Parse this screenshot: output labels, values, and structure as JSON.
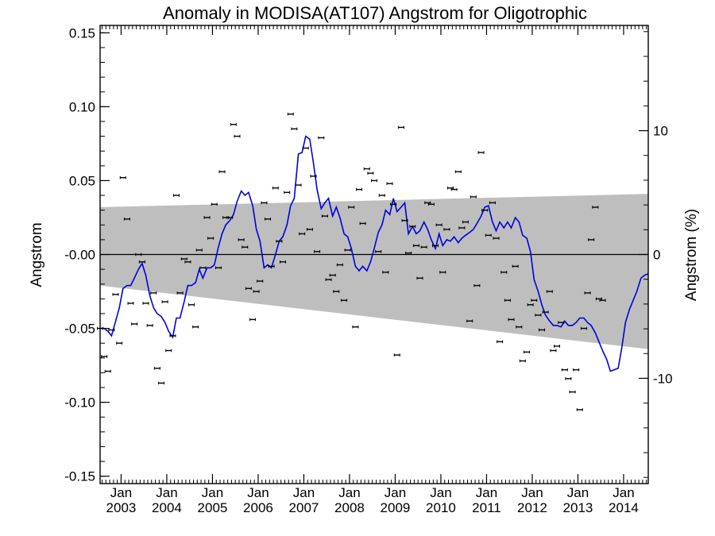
{
  "chart_data": {
    "type": "scatter",
    "title": "Anomaly in MODISA(AT107) Angstrom for Oligotrophic",
    "ylabel": "Angstrom",
    "ylabel_right": "Angstrom (%)",
    "xlabel": "",
    "ylim": [
      -0.155,
      0.155
    ],
    "ylim_right": [
      -18.5,
      18.5
    ],
    "xlim": [
      2002.54,
      2014.54
    ],
    "y_ticks": [
      {
        "value": 0.15,
        "label": "0.15"
      },
      {
        "value": 0.1,
        "label": "0.10"
      },
      {
        "value": 0.05,
        "label": "0.05"
      },
      {
        "value": 0.0,
        "label": "-0.00"
      },
      {
        "value": -0.05,
        "label": "-0.05"
      },
      {
        "value": -0.1,
        "label": "-0.10"
      },
      {
        "value": -0.15,
        "label": "-0.15"
      }
    ],
    "y_ticks_right": [
      {
        "value": 10,
        "label": "10"
      },
      {
        "value": 0,
        "label": "0"
      },
      {
        "value": -10,
        "label": "-10"
      }
    ],
    "x_ticks": [
      {
        "value": 2003.0,
        "month": "Jan",
        "year": "2003"
      },
      {
        "value": 2004.0,
        "month": "Jan",
        "year": "2004"
      },
      {
        "value": 2005.0,
        "month": "Jan",
        "year": "2005"
      },
      {
        "value": 2006.0,
        "month": "Jan",
        "year": "2006"
      },
      {
        "value": 2007.0,
        "month": "Jan",
        "year": "2007"
      },
      {
        "value": 2008.0,
        "month": "Jan",
        "year": "2008"
      },
      {
        "value": 2009.0,
        "month": "Jan",
        "year": "2009"
      },
      {
        "value": 2010.0,
        "month": "Jan",
        "year": "2010"
      },
      {
        "value": 2011.0,
        "month": "Jan",
        "year": "2011"
      },
      {
        "value": 2012.0,
        "month": "Jan",
        "year": "2012"
      },
      {
        "value": 2013.0,
        "month": "Jan",
        "year": "2013"
      },
      {
        "value": 2014.0,
        "month": "Jan",
        "year": "2014"
      }
    ],
    "confidence_band": {
      "x": [
        2002.54,
        2014.54
      ],
      "upper": [
        0.032,
        0.041
      ],
      "lower": [
        -0.021,
        -0.064
      ],
      "color": "#bebebe"
    },
    "zero_line": 0.0,
    "smoothed_series": {
      "color": "#0000dd",
      "points": [
        [
          2002.54,
          -0.05
        ],
        [
          2002.63,
          -0.05
        ],
        [
          2002.71,
          -0.052
        ],
        [
          2002.79,
          -0.055
        ],
        [
          2002.88,
          -0.045
        ],
        [
          2002.96,
          -0.036
        ],
        [
          2003.04,
          -0.023
        ],
        [
          2003.13,
          -0.021
        ],
        [
          2003.21,
          -0.021
        ],
        [
          2003.29,
          -0.016
        ],
        [
          2003.38,
          -0.01
        ],
        [
          2003.46,
          -0.006
        ],
        [
          2003.54,
          -0.014
        ],
        [
          2003.63,
          -0.028
        ],
        [
          2003.71,
          -0.036
        ],
        [
          2003.79,
          -0.04
        ],
        [
          2003.88,
          -0.042
        ],
        [
          2003.96,
          -0.046
        ],
        [
          2004.04,
          -0.052
        ],
        [
          2004.13,
          -0.056
        ],
        [
          2004.21,
          -0.043
        ],
        [
          2004.29,
          -0.043
        ],
        [
          2004.38,
          -0.032
        ],
        [
          2004.46,
          -0.021
        ],
        [
          2004.54,
          -0.021
        ],
        [
          2004.63,
          -0.019
        ],
        [
          2004.71,
          -0.01
        ],
        [
          2004.79,
          -0.016
        ],
        [
          2004.88,
          -0.009
        ],
        [
          2004.96,
          -0.009
        ],
        [
          2005.04,
          -0.007
        ],
        [
          2005.13,
          0.005
        ],
        [
          2005.21,
          0.014
        ],
        [
          2005.29,
          0.02
        ],
        [
          2005.38,
          0.023
        ],
        [
          2005.46,
          0.027
        ],
        [
          2005.54,
          0.036
        ],
        [
          2005.63,
          0.043
        ],
        [
          2005.71,
          0.04
        ],
        [
          2005.79,
          0.042
        ],
        [
          2005.88,
          0.033
        ],
        [
          2005.96,
          0.017
        ],
        [
          2006.04,
          0.009
        ],
        [
          2006.13,
          -0.009
        ],
        [
          2006.21,
          -0.007
        ],
        [
          2006.29,
          -0.009
        ],
        [
          2006.38,
          0.0
        ],
        [
          2006.46,
          0.009
        ],
        [
          2006.54,
          0.012
        ],
        [
          2006.63,
          0.02
        ],
        [
          2006.71,
          0.033
        ],
        [
          2006.79,
          0.038
        ],
        [
          2006.88,
          0.068
        ],
        [
          2006.96,
          0.069
        ],
        [
          2007.04,
          0.08
        ],
        [
          2007.13,
          0.078
        ],
        [
          2007.21,
          0.062
        ],
        [
          2007.29,
          0.044
        ],
        [
          2007.38,
          0.031
        ],
        [
          2007.46,
          0.035
        ],
        [
          2007.54,
          0.038
        ],
        [
          2007.63,
          0.026
        ],
        [
          2007.71,
          0.032
        ],
        [
          2007.79,
          0.025
        ],
        [
          2007.88,
          0.014
        ],
        [
          2007.96,
          0.012
        ],
        [
          2008.04,
          0.004
        ],
        [
          2008.13,
          -0.008
        ],
        [
          2008.21,
          -0.011
        ],
        [
          2008.29,
          -0.008
        ],
        [
          2008.38,
          -0.011
        ],
        [
          2008.46,
          -0.005
        ],
        [
          2008.54,
          0.004
        ],
        [
          2008.63,
          0.015
        ],
        [
          2008.71,
          0.02
        ],
        [
          2008.79,
          0.03
        ],
        [
          2008.88,
          0.027
        ],
        [
          2008.96,
          0.038
        ],
        [
          2009.04,
          0.029
        ],
        [
          2009.13,
          0.032
        ],
        [
          2009.21,
          0.035
        ],
        [
          2009.29,
          0.014
        ],
        [
          2009.38,
          0.019
        ],
        [
          2009.46,
          0.014
        ],
        [
          2009.54,
          0.016
        ],
        [
          2009.63,
          0.022
        ],
        [
          2009.71,
          0.017
        ],
        [
          2009.79,
          0.01
        ],
        [
          2009.88,
          0.004
        ],
        [
          2009.96,
          0.014
        ],
        [
          2010.04,
          0.006
        ],
        [
          2010.13,
          0.01
        ],
        [
          2010.21,
          0.009
        ],
        [
          2010.29,
          0.012
        ],
        [
          2010.38,
          0.008
        ],
        [
          2010.46,
          0.011
        ],
        [
          2010.54,
          0.013
        ],
        [
          2010.63,
          0.015
        ],
        [
          2010.71,
          0.017
        ],
        [
          2010.79,
          0.021
        ],
        [
          2010.88,
          0.026
        ],
        [
          2010.96,
          0.032
        ],
        [
          2011.04,
          0.033
        ],
        [
          2011.13,
          0.022
        ],
        [
          2011.21,
          0.016
        ],
        [
          2011.29,
          0.022
        ],
        [
          2011.38,
          0.018
        ],
        [
          2011.46,
          0.022
        ],
        [
          2011.54,
          0.018
        ],
        [
          2011.63,
          0.025
        ],
        [
          2011.71,
          0.022
        ],
        [
          2011.79,
          0.013
        ],
        [
          2011.88,
          0.011
        ],
        [
          2011.96,
          0.002
        ],
        [
          2012.04,
          -0.017
        ],
        [
          2012.13,
          -0.025
        ],
        [
          2012.21,
          -0.034
        ],
        [
          2012.29,
          -0.041
        ],
        [
          2012.38,
          -0.045
        ],
        [
          2012.46,
          -0.048
        ],
        [
          2012.54,
          -0.048
        ],
        [
          2012.63,
          -0.049
        ],
        [
          2012.71,
          -0.045
        ],
        [
          2012.79,
          -0.048
        ],
        [
          2012.88,
          -0.048
        ],
        [
          2012.96,
          -0.046
        ],
        [
          2013.04,
          -0.043
        ],
        [
          2013.13,
          -0.043
        ],
        [
          2013.21,
          -0.046
        ],
        [
          2013.29,
          -0.048
        ],
        [
          2013.38,
          -0.053
        ],
        [
          2013.46,
          -0.059
        ],
        [
          2013.54,
          -0.065
        ],
        [
          2013.63,
          -0.071
        ],
        [
          2013.71,
          -0.079
        ],
        [
          2013.79,
          -0.078
        ],
        [
          2013.88,
          -0.077
        ],
        [
          2013.96,
          -0.063
        ],
        [
          2014.04,
          -0.046
        ],
        [
          2014.13,
          -0.037
        ],
        [
          2014.21,
          -0.031
        ],
        [
          2014.29,
          -0.025
        ],
        [
          2014.38,
          -0.016
        ],
        [
          2014.46,
          -0.014
        ],
        [
          2014.54,
          -0.013
        ]
      ]
    },
    "points": [
      [
        2002.54,
        -0.05
      ],
      [
        2002.63,
        -0.069
      ],
      [
        2002.71,
        -0.079
      ],
      [
        2002.79,
        -0.051
      ],
      [
        2002.88,
        -0.027
      ],
      [
        2002.96,
        -0.06
      ],
      [
        2003.04,
        0.052
      ],
      [
        2003.13,
        0.024
      ],
      [
        2003.21,
        -0.033
      ],
      [
        2003.29,
        -0.047
      ],
      [
        2003.38,
        0.0
      ],
      [
        2003.46,
        -0.005
      ],
      [
        2003.54,
        -0.033
      ],
      [
        2003.63,
        -0.048
      ],
      [
        2003.71,
        -0.026
      ],
      [
        2003.79,
        -0.077
      ],
      [
        2003.88,
        -0.087
      ],
      [
        2003.96,
        -0.032
      ],
      [
        2004.04,
        -0.065
      ],
      [
        2004.13,
        -0.055
      ],
      [
        2004.21,
        0.04
      ],
      [
        2004.29,
        -0.026
      ],
      [
        2004.38,
        -0.003
      ],
      [
        2004.46,
        -0.005
      ],
      [
        2004.54,
        -0.034
      ],
      [
        2004.63,
        -0.049
      ],
      [
        2004.71,
        0.003
      ],
      [
        2004.79,
        -0.009
      ],
      [
        2004.88,
        0.025
      ],
      [
        2004.96,
        0.011
      ],
      [
        2005.04,
        0.034
      ],
      [
        2005.13,
        -0.009
      ],
      [
        2005.21,
        0.056
      ],
      [
        2005.29,
        0.025
      ],
      [
        2005.38,
        0.025
      ],
      [
        2005.46,
        0.088
      ],
      [
        2005.54,
        0.08
      ],
      [
        2005.63,
        0.01
      ],
      [
        2005.71,
        0.005
      ],
      [
        2005.79,
        -0.023
      ],
      [
        2005.88,
        -0.044
      ],
      [
        2005.96,
        -0.025
      ],
      [
        2006.04,
        -0.018
      ],
      [
        2006.13,
        0.035
      ],
      [
        2006.21,
        0.024
      ],
      [
        2006.29,
        -0.008
      ],
      [
        2006.38,
        0.045
      ],
      [
        2006.46,
        0.009
      ],
      [
        2006.54,
        -0.005
      ],
      [
        2006.63,
        0.042
      ],
      [
        2006.71,
        0.095
      ],
      [
        2006.79,
        0.085
      ],
      [
        2006.88,
        0.047
      ],
      [
        2006.96,
        0.014
      ],
      [
        2007.04,
        0.072
      ],
      [
        2007.13,
        0.017
      ],
      [
        2007.21,
        0.053
      ],
      [
        2007.29,
        0.002
      ],
      [
        2007.38,
        0.079
      ],
      [
        2007.46,
        0.026
      ],
      [
        2007.54,
        -0.017
      ],
      [
        2007.63,
        -0.014
      ],
      [
        2007.71,
        -0.025
      ],
      [
        2007.79,
        -0.007
      ],
      [
        2007.88,
        -0.031
      ],
      [
        2007.96,
        0.003
      ],
      [
        2008.04,
        0.032
      ],
      [
        2008.13,
        -0.049
      ],
      [
        2008.21,
        0.044
      ],
      [
        2008.29,
        0.021
      ],
      [
        2008.38,
        0.058
      ],
      [
        2008.46,
        0.055
      ],
      [
        2008.54,
        0.05
      ],
      [
        2008.63,
        0.002
      ],
      [
        2008.71,
        0.04
      ],
      [
        2008.79,
        -0.012
      ],
      [
        2008.88,
        0.048
      ],
      [
        2008.96,
        0.034
      ],
      [
        2009.04,
        -0.068
      ],
      [
        2009.13,
        0.086
      ],
      [
        2009.21,
        0.023
      ],
      [
        2009.29,
        0.001
      ],
      [
        2009.38,
        0.019
      ],
      [
        2009.46,
        0.006
      ],
      [
        2009.54,
        -0.016
      ],
      [
        2009.63,
        0.005
      ],
      [
        2009.71,
        0.035
      ],
      [
        2009.79,
        0.034
      ],
      [
        2009.88,
        0.006
      ],
      [
        2009.96,
        0.02
      ],
      [
        2010.04,
        -0.012
      ],
      [
        2010.13,
        0.017
      ],
      [
        2010.21,
        0.045
      ],
      [
        2010.29,
        0.044
      ],
      [
        2010.38,
        0.056
      ],
      [
        2010.46,
        0.018
      ],
      [
        2010.54,
        0.022
      ],
      [
        2010.63,
        -0.045
      ],
      [
        2010.71,
        0.039
      ],
      [
        2010.79,
        -0.021
      ],
      [
        2010.88,
        0.069
      ],
      [
        2010.96,
        0.03
      ],
      [
        2011.04,
        0.013
      ],
      [
        2011.13,
        0.035
      ],
      [
        2011.21,
        0.011
      ],
      [
        2011.29,
        -0.059
      ],
      [
        2011.38,
        -0.012
      ],
      [
        2011.46,
        -0.031
      ],
      [
        2011.54,
        -0.044
      ],
      [
        2011.63,
        -0.008
      ],
      [
        2011.71,
        -0.049
      ],
      [
        2011.79,
        -0.072
      ],
      [
        2011.88,
        -0.066
      ],
      [
        2011.96,
        -0.034
      ],
      [
        2012.04,
        -0.031
      ],
      [
        2012.13,
        -0.041
      ],
      [
        2012.21,
        -0.051
      ],
      [
        2012.29,
        -0.039
      ],
      [
        2012.38,
        -0.025
      ],
      [
        2012.46,
        -0.065
      ],
      [
        2012.54,
        -0.062
      ],
      [
        2012.63,
        -0.046
      ],
      [
        2012.71,
        -0.078
      ],
      [
        2012.79,
        -0.084
      ],
      [
        2012.88,
        -0.093
      ],
      [
        2012.96,
        -0.078
      ],
      [
        2013.04,
        -0.105
      ],
      [
        2013.13,
        -0.05
      ],
      [
        2013.21,
        -0.026
      ],
      [
        2013.29,
        0.01
      ],
      [
        2013.38,
        0.032
      ],
      [
        2013.46,
        -0.03
      ],
      [
        2013.54,
        -0.031
      ]
    ]
  }
}
